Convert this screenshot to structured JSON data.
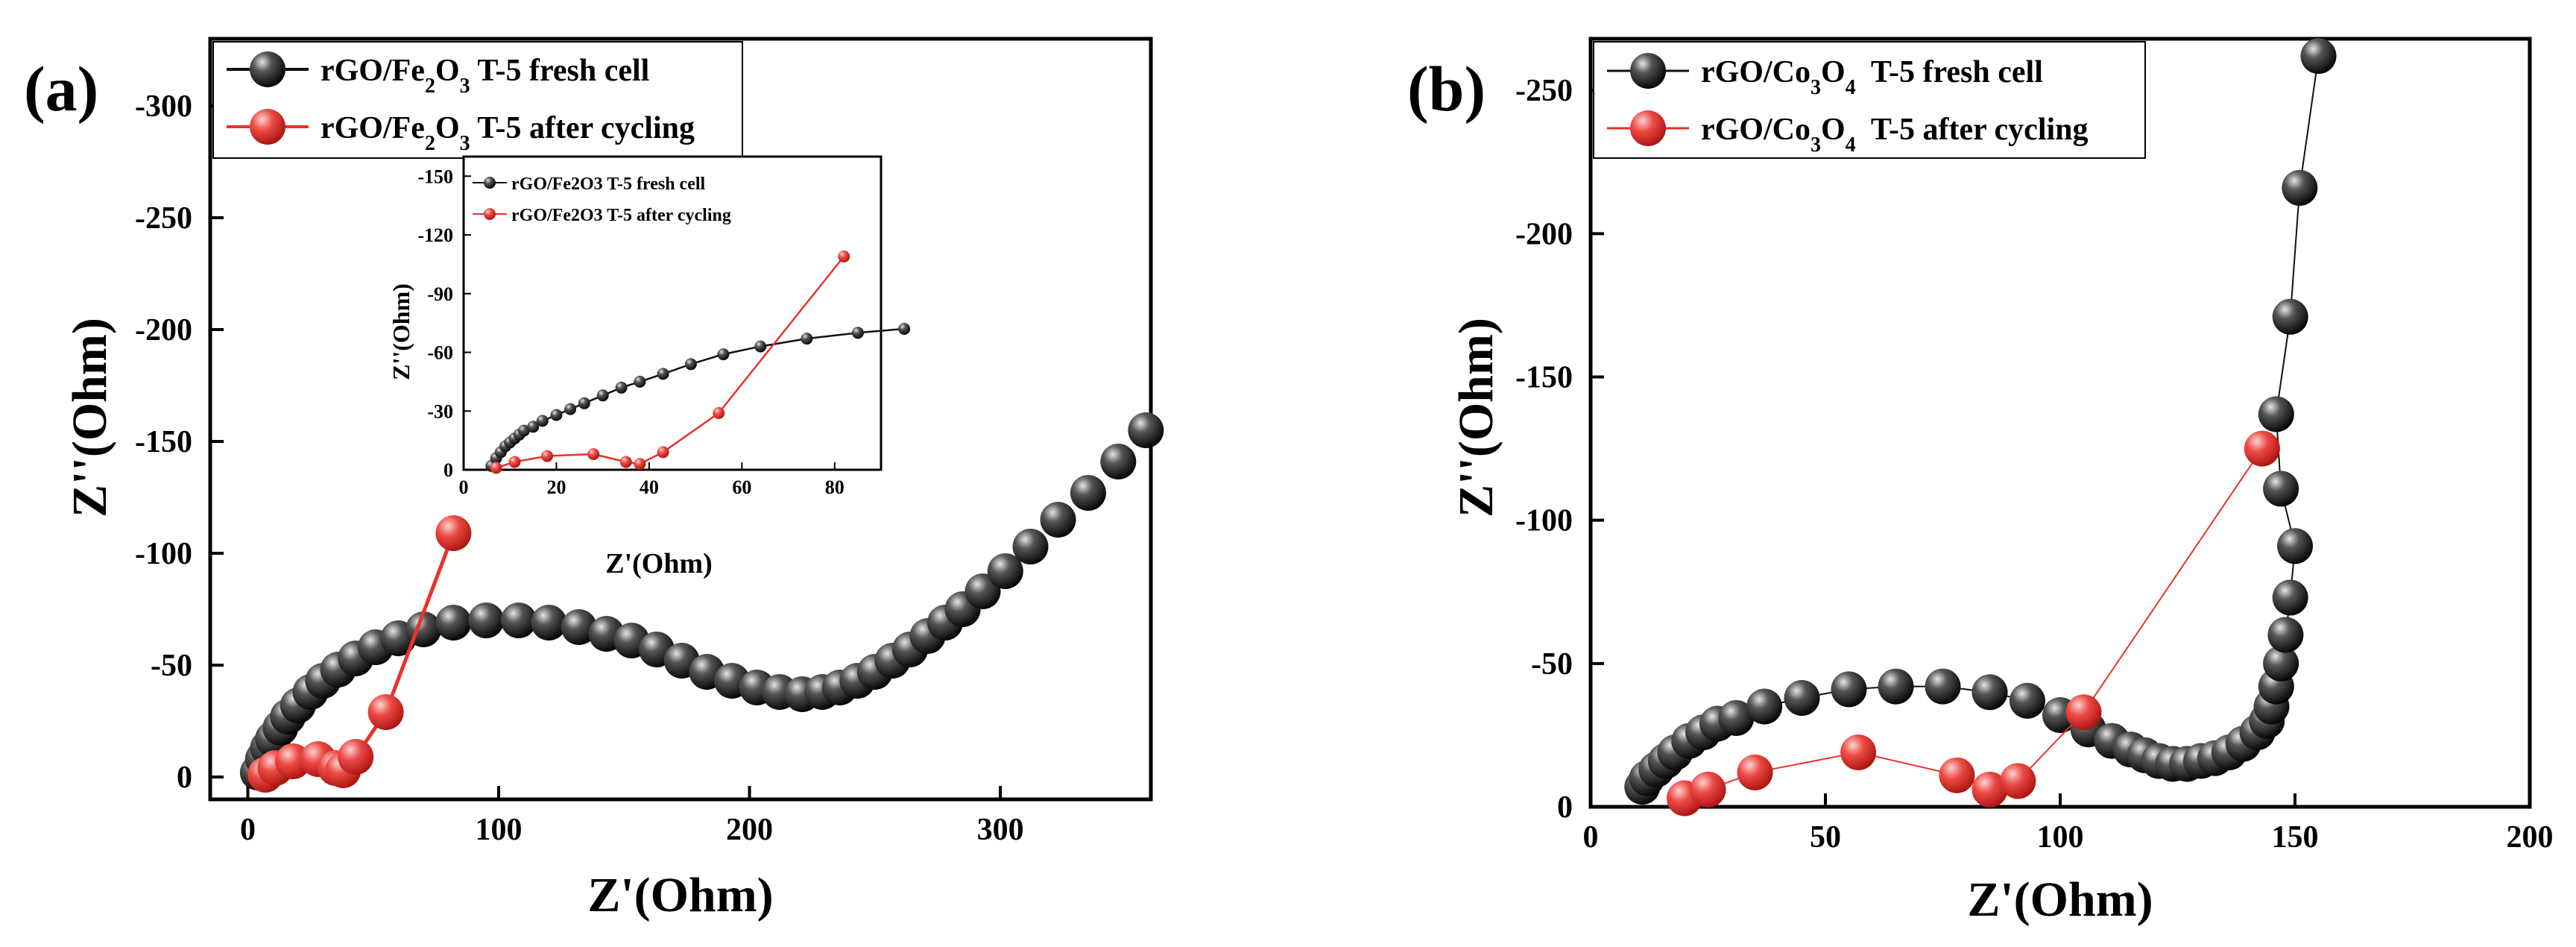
{
  "chart_data": [
    {
      "type": "scatter",
      "panel_label": "(a)",
      "xlabel": "Z'(Ohm)",
      "ylabel": "Z''(Ohm)",
      "xlim": [
        -15,
        360
      ],
      "ylim": [
        10,
        -330
      ],
      "x_ticks": [
        "0",
        "100",
        "200",
        "300"
      ],
      "y_ticks": [
        "0",
        "-50",
        "-100",
        "-150",
        "-200",
        "-250",
        "-300"
      ],
      "x_tick_values": [
        0,
        100,
        200,
        300
      ],
      "y_tick_values": [
        0,
        -50,
        -100,
        -150,
        -200,
        -250,
        -300
      ],
      "legend": {
        "position": "top-left",
        "entries": [
          {
            "base": "rGO/Fe",
            "sub1": "2",
            "mid": "O",
            "sub2": "3",
            "rest": " T-5 fresh cell",
            "color": "#111111"
          },
          {
            "base": "rGO/Fe",
            "sub1": "2",
            "mid": "O",
            "sub2": "3",
            "rest": " T-5 after cycling",
            "color": "#e8322d"
          }
        ]
      },
      "series": [
        {
          "name": "rGO/Fe2O3 T-5 fresh cell",
          "color": "#111111",
          "line": false,
          "points": [
            [
              4,
              -2
            ],
            [
              6,
              -8
            ],
            [
              8,
              -13
            ],
            [
              10,
              -17
            ],
            [
              13,
              -22
            ],
            [
              16,
              -27
            ],
            [
              20,
              -32
            ],
            [
              25,
              -38
            ],
            [
              30,
              -43
            ],
            [
              36,
              -48
            ],
            [
              43,
              -53
            ],
            [
              51,
              -58
            ],
            [
              60,
              -62
            ],
            [
              70,
              -66
            ],
            [
              82,
              -69
            ],
            [
              95,
              -70
            ],
            [
              108,
              -70
            ],
            [
              120,
              -69
            ],
            [
              132,
              -67
            ],
            [
              143,
              -64
            ],
            [
              153,
              -61
            ],
            [
              163,
              -57
            ],
            [
              173,
              -52
            ],
            [
              183,
              -47
            ],
            [
              193,
              -43
            ],
            [
              203,
              -40
            ],
            [
              212,
              -38
            ],
            [
              221,
              -37
            ],
            [
              229,
              -38
            ],
            [
              236,
              -40
            ],
            [
              243,
              -43
            ],
            [
              250,
              -47
            ],
            [
              257,
              -52
            ],
            [
              264,
              -57
            ],
            [
              271,
              -63
            ],
            [
              278,
              -69
            ],
            [
              285,
              -75
            ],
            [
              293,
              -83
            ],
            [
              302,
              -92
            ],
            [
              312,
              -103
            ],
            [
              323,
              -115
            ],
            [
              335,
              -127
            ],
            [
              347,
              -141
            ],
            [
              358,
              -155
            ]
          ]
        },
        {
          "name": "rGO/Fe2O3 T-5 after cycling",
          "color": "#e8322d",
          "line": true,
          "points": [
            [
              7,
              -1
            ],
            [
              11,
              -4
            ],
            [
              18,
              -7
            ],
            [
              28,
              -8
            ],
            [
              35,
              -4
            ],
            [
              38,
              -3
            ],
            [
              43,
              -9
            ],
            [
              55,
              -29
            ],
            [
              82,
              -109
            ]
          ]
        }
      ],
      "inset": {
        "xlabel": "Z'(Ohm)",
        "ylabel": "Z''(Ohm)",
        "xlim": [
          0,
          90
        ],
        "ylim": [
          0,
          -160
        ],
        "x_ticks": [
          "0",
          "20",
          "40",
          "60",
          "80"
        ],
        "y_ticks": [
          "0",
          "-30",
          "-60",
          "-90",
          "-120",
          "-150"
        ],
        "x_tick_values": [
          0,
          20,
          40,
          60,
          80
        ],
        "y_tick_values": [
          0,
          -30,
          -60,
          -90,
          -120,
          -150
        ],
        "legend": {
          "position": "top-left",
          "entries": [
            {
              "base": "rGO/Fe",
              "sub1": "2",
              "mid": "O",
              "sub2": "3",
              "rest": " T-5 fresh cell",
              "color": "#111111"
            },
            {
              "base": "rGO/Fe",
              "sub1": "2",
              "mid": "O",
              "sub2": "3",
              "rest": " T-5 after cycling",
              "color": "#e8322d"
            }
          ]
        },
        "series": [
          {
            "name": "rGO/Fe2O3 T-5 fresh cell",
            "color": "#111111",
            "line": true,
            "points": [
              [
                6,
                -2
              ],
              [
                7,
                -6
              ],
              [
                8,
                -9
              ],
              [
                9,
                -12
              ],
              [
                10,
                -14
              ],
              [
                11,
                -16
              ],
              [
                12,
                -18
              ],
              [
                13,
                -20
              ],
              [
                15,
                -22
              ],
              [
                17,
                -25
              ],
              [
                20,
                -28
              ],
              [
                23,
                -31
              ],
              [
                26,
                -34
              ],
              [
                30,
                -38
              ],
              [
                34,
                -42
              ],
              [
                38,
                -45
              ],
              [
                43,
                -49
              ],
              [
                49,
                -54
              ],
              [
                56,
                -59
              ],
              [
                64,
                -63
              ],
              [
                74,
                -67
              ],
              [
                85,
                -70
              ],
              [
                95,
                -72
              ]
            ]
          },
          {
            "name": "rGO/Fe2O3 T-5 after cycling",
            "color": "#e8322d",
            "line": true,
            "points": [
              [
                7,
                -1
              ],
              [
                11,
                -4
              ],
              [
                18,
                -7
              ],
              [
                28,
                -8
              ],
              [
                35,
                -4
              ],
              [
                38,
                -3
              ],
              [
                43,
                -9
              ],
              [
                55,
                -29
              ],
              [
                82,
                -109
              ]
            ]
          }
        ]
      }
    },
    {
      "type": "scatter",
      "panel_label": "(b)",
      "xlabel": "Z'(Ohm)",
      "ylabel": "Z''(Ohm)",
      "xlim": [
        0,
        200
      ],
      "ylim": [
        0,
        -268
      ],
      "x_ticks": [
        "0",
        "50",
        "100",
        "150",
        "200"
      ],
      "y_ticks": [
        "0",
        "-50",
        "-100",
        "-150",
        "-200",
        "-250"
      ],
      "x_tick_values": [
        0,
        50,
        100,
        150,
        200
      ],
      "y_tick_values": [
        0,
        -50,
        -100,
        -150,
        -200,
        -250
      ],
      "legend": {
        "position": "top-left",
        "entries": [
          {
            "base": "rGO/Co",
            "sub1": "3",
            "mid": "O",
            "sub2": "4",
            "rest": "  T-5 fresh cell",
            "color": "#111111"
          },
          {
            "base": "rGO/Co",
            "sub1": "3",
            "mid": "O",
            "sub2": "4",
            "rest": "  T-5 after cycling",
            "color": "#e8322d"
          }
        ]
      },
      "series": [
        {
          "name": "rGO/Co3O4 T-5 fresh cell",
          "color": "#111111",
          "line": true,
          "points": [
            [
              11,
              -7
            ],
            [
              12,
              -10
            ],
            [
              14,
              -13
            ],
            [
              16,
              -16
            ],
            [
              18,
              -19
            ],
            [
              21,
              -23
            ],
            [
              24,
              -26
            ],
            [
              27,
              -29
            ],
            [
              31,
              -31
            ],
            [
              37,
              -35
            ],
            [
              45,
              -38
            ],
            [
              55,
              -41
            ],
            [
              65,
              -42
            ],
            [
              75,
              -42
            ],
            [
              85,
              -40
            ],
            [
              93,
              -37
            ],
            [
              100,
              -32
            ],
            [
              106,
              -27
            ],
            [
              111,
              -23
            ],
            [
              115,
              -20
            ],
            [
              118,
              -18
            ],
            [
              121,
              -16
            ],
            [
              124,
              -15
            ],
            [
              127,
              -15
            ],
            [
              130,
              -16
            ],
            [
              133,
              -17
            ],
            [
              136,
              -19
            ],
            [
              139,
              -22
            ],
            [
              142,
              -26
            ],
            [
              144,
              -30
            ],
            [
              145,
              -35
            ],
            [
              146,
              -42
            ],
            [
              147,
              -50
            ],
            [
              148,
              -60
            ],
            [
              149,
              -73
            ],
            [
              150,
              -91
            ],
            [
              147,
              -111
            ],
            [
              146,
              -137
            ],
            [
              149,
              -171
            ],
            [
              151,
              -216
            ],
            [
              155,
              -262
            ]
          ]
        },
        {
          "name": "rGO/Co3O4 T-5 after cycling",
          "color": "#e8322d",
          "line": true,
          "points": [
            [
              20,
              -3
            ],
            [
              25,
              -6
            ],
            [
              35,
              -12
            ],
            [
              57,
              -19
            ],
            [
              78,
              -11
            ],
            [
              85,
              -6
            ],
            [
              91,
              -9
            ],
            [
              105,
              -33
            ],
            [
              143,
              -125
            ]
          ]
        }
      ]
    }
  ]
}
